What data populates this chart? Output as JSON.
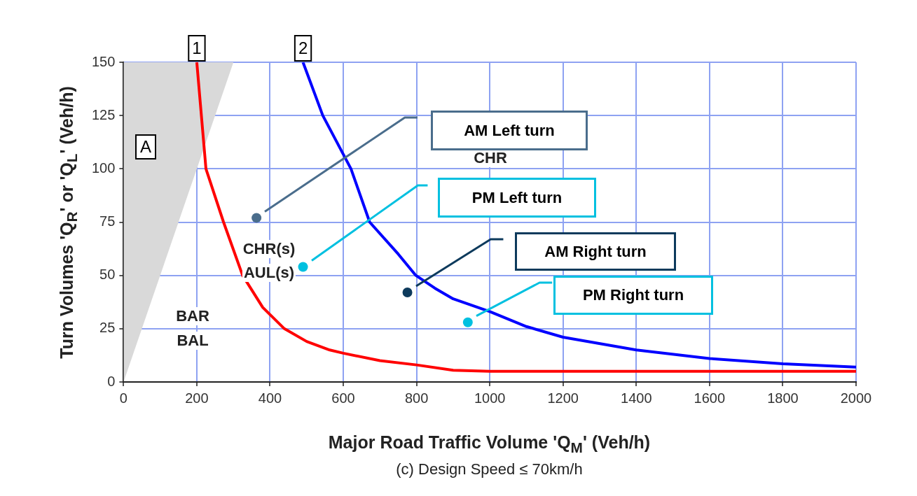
{
  "chart_data": {
    "type": "line",
    "xlabel": "Major Road Traffic Volume 'Q$_{M}$' (Veh/h)",
    "ylabel": "Turn Volumes 'Q$_{R}$' or 'Q$_{L}$' (Veh/h)",
    "xlim": [
      0,
      2000
    ],
    "xticks": [
      0,
      200,
      400,
      600,
      800,
      1000,
      1200,
      1400,
      1600,
      1800,
      2000
    ],
    "ylim": [
      0,
      150
    ],
    "yticks": [
      0,
      25,
      50,
      75,
      100,
      125,
      150
    ],
    "grid": true,
    "series": [
      {
        "type": "area",
        "color": "#d9d9d9",
        "x": [
          0,
          300
        ],
        "values": [
          0,
          150
        ]
      },
      {
        "color": "#ff0000",
        "marker": "none",
        "line_style": "solid",
        "x": [
          200,
          225,
          273,
          325,
          380,
          439,
          500,
          563,
          600,
          700,
          800,
          900,
          1000,
          1200,
          1500,
          2000
        ],
        "values": [
          150,
          100,
          75,
          50,
          35,
          25,
          19,
          15,
          13.5,
          10,
          8,
          5.5,
          5,
          5,
          5,
          5
        ]
      },
      {
        "color": "#0000ff",
        "marker": "none",
        "line_style": "solid",
        "x": [
          490,
          544,
          621,
          672,
          750,
          798,
          850,
          900,
          1000,
          1100,
          1200,
          1400,
          1600,
          1800,
          2000
        ],
        "values": [
          150,
          125,
          100,
          75,
          60,
          50,
          44,
          39,
          33,
          26,
          21,
          15,
          11,
          8.5,
          7
        ]
      },
      {
        "type": "scatter",
        "marker": "circle",
        "x": [
          363,
          490,
          775,
          940
        ],
        "values": [
          77,
          54,
          42,
          28
        ],
        "colors": [
          "#4a6d8c",
          "#00c0e0",
          "#0d3a5c",
          "#00c0e0"
        ]
      }
    ],
    "annotations": [
      {
        "text": "1",
        "x": 200,
        "y": 150
      },
      {
        "text": "2",
        "x": 490,
        "y": 150
      },
      "A",
      "BAR",
      "BAL",
      "CHR(s)",
      "AUL(s)",
      "CHR",
      "AM Left turn",
      "PM Left turn",
      "AM Right turn",
      "PM Right turn",
      "(c) Design Speed ≤ 70km/h"
    ]
  }
}
